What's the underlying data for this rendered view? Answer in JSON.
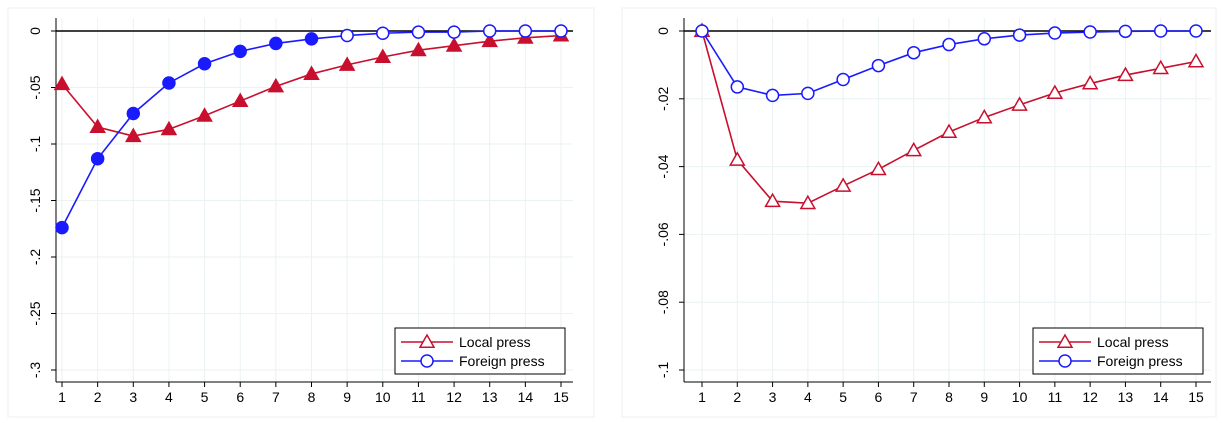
{
  "chart_data": [
    {
      "type": "line",
      "title": "",
      "xlabel": "",
      "ylabel": "",
      "x": [
        1,
        2,
        3,
        4,
        5,
        6,
        7,
        8,
        9,
        10,
        11,
        12,
        13,
        14,
        15
      ],
      "xlim": [
        1,
        15
      ],
      "ylim": [
        -0.3,
        0
      ],
      "yticks": [
        0,
        -0.05,
        -0.1,
        -0.15,
        -0.2,
        -0.25,
        -0.3
      ],
      "ytick_labels": [
        "0",
        "-.05",
        "-.1",
        "-.15",
        "-.2",
        "-.25",
        "-.3"
      ],
      "xtick_labels": [
        "1",
        "2",
        "3",
        "4",
        "5",
        "6",
        "7",
        "8",
        "9",
        "10",
        "11",
        "12",
        "13",
        "14",
        "15"
      ],
      "grid": true,
      "zero_line": true,
      "legend_position": "bottom-right",
      "series": [
        {
          "name": "Local press",
          "color": "#c8102e",
          "marker": "triangle",
          "values": [
            -0.047,
            -0.085,
            -0.093,
            -0.087,
            -0.075,
            -0.062,
            -0.049,
            -0.038,
            -0.03,
            -0.023,
            -0.017,
            -0.013,
            -0.009,
            -0.006,
            -0.004
          ],
          "filled": [
            true,
            true,
            true,
            true,
            true,
            true,
            true,
            true,
            true,
            true,
            true,
            true,
            true,
            true,
            true
          ]
        },
        {
          "name": "Foreign press",
          "color": "#1a1aff",
          "marker": "circle",
          "values": [
            -0.174,
            -0.113,
            -0.073,
            -0.046,
            -0.029,
            -0.018,
            -0.011,
            -0.007,
            -0.004,
            -0.002,
            -0.001,
            -0.001,
            0,
            0,
            0
          ],
          "filled": [
            true,
            true,
            true,
            true,
            true,
            true,
            true,
            true,
            false,
            false,
            false,
            false,
            false,
            false,
            false
          ]
        }
      ]
    },
    {
      "type": "line",
      "title": "",
      "xlabel": "",
      "ylabel": "",
      "x": [
        1,
        2,
        3,
        4,
        5,
        6,
        7,
        8,
        9,
        10,
        11,
        12,
        13,
        14,
        15
      ],
      "xlim": [
        1,
        15
      ],
      "ylim": [
        -0.1,
        0
      ],
      "yticks": [
        0,
        -0.02,
        -0.04,
        -0.06,
        -0.08,
        -0.1
      ],
      "ytick_labels": [
        "0",
        "-.02",
        "-.04",
        "-.06",
        "-.08",
        "-.1"
      ],
      "xtick_labels": [
        "1",
        "2",
        "3",
        "4",
        "5",
        "6",
        "7",
        "8",
        "9",
        "10",
        "11",
        "12",
        "13",
        "14",
        "15"
      ],
      "grid": true,
      "zero_line": true,
      "legend_position": "bottom-right",
      "series": [
        {
          "name": "Local press",
          "color": "#c8102e",
          "marker": "triangle",
          "values": [
            0,
            -0.038,
            -0.0502,
            -0.0508,
            -0.0457,
            -0.0408,
            -0.0352,
            -0.0298,
            -0.0255,
            -0.0218,
            -0.0183,
            -0.0155,
            -0.013,
            -0.011,
            -0.009
          ],
          "filled": [
            false,
            false,
            false,
            false,
            false,
            false,
            false,
            false,
            false,
            false,
            false,
            false,
            false,
            false,
            false
          ]
        },
        {
          "name": "Foreign press",
          "color": "#1a1aff",
          "marker": "circle",
          "values": [
            0,
            -0.0165,
            -0.019,
            -0.0184,
            -0.0143,
            -0.0102,
            -0.0064,
            -0.004,
            -0.0023,
            -0.0012,
            -0.0006,
            -0.0003,
            -0.0001,
            0,
            0
          ],
          "filled": [
            false,
            false,
            false,
            false,
            false,
            false,
            false,
            false,
            false,
            false,
            false,
            false,
            false,
            false,
            false
          ]
        }
      ]
    }
  ]
}
